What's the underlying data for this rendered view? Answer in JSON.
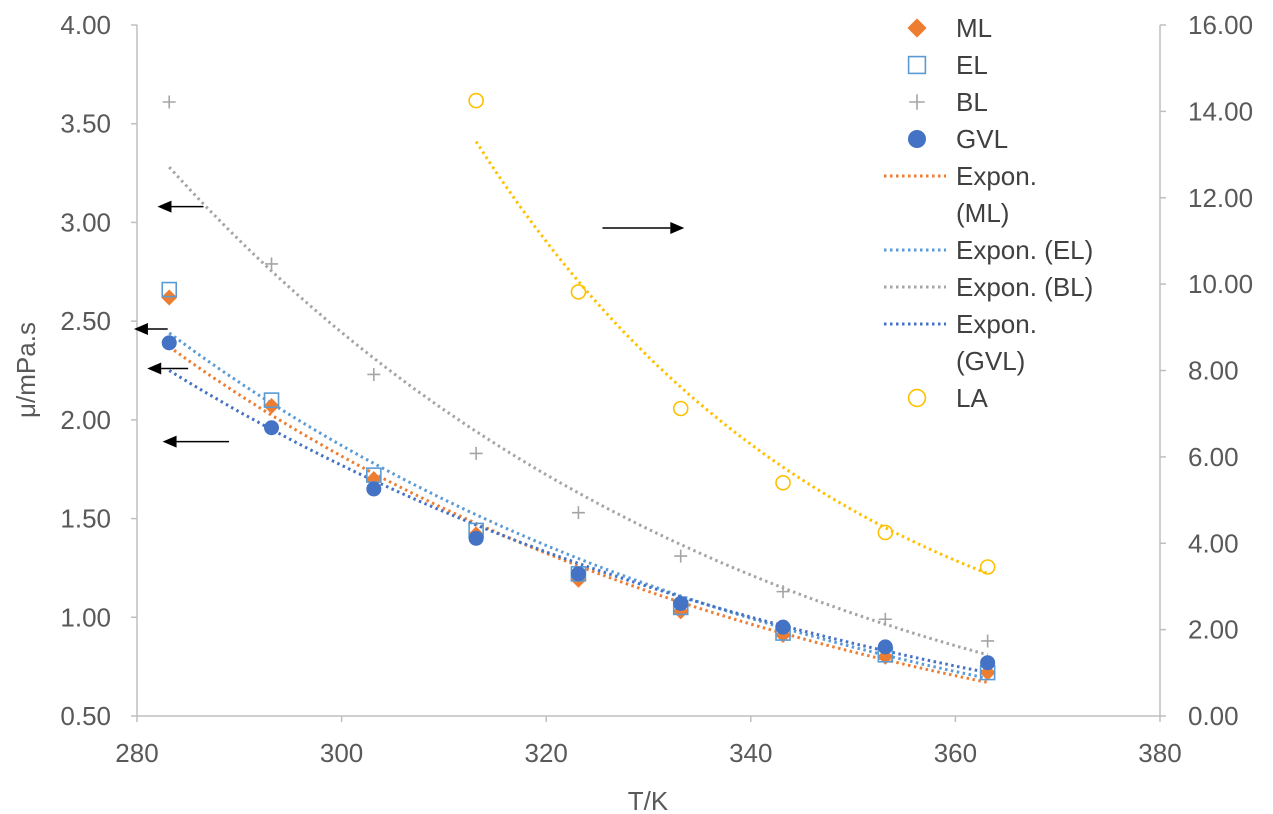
{
  "chart_data": {
    "type": "scatter",
    "xlabel": "T/K",
    "ylabel": "μ/mPa.s",
    "xlim": [
      280,
      380
    ],
    "ylim": [
      0.5,
      4.0
    ],
    "y2lim": [
      0.0,
      16.0
    ],
    "x_ticks": [
      "280",
      "300",
      "320",
      "340",
      "360",
      "380"
    ],
    "y_ticks": [
      "0.50",
      "1.00",
      "1.50",
      "2.00",
      "2.50",
      "3.00",
      "3.50",
      "4.00"
    ],
    "y2_ticks": [
      "0.00",
      "2.00",
      "4.00",
      "6.00",
      "8.00",
      "10.00",
      "12.00",
      "14.00",
      "16.00"
    ],
    "legend_position": "top-right",
    "series": [
      {
        "name": "ML",
        "axis": "left",
        "marker": "diamond",
        "color": "#ED7D31",
        "x": [
          283.15,
          293.15,
          303.15,
          313.15,
          323.15,
          333.15,
          343.15,
          353.15,
          363.15
        ],
        "y": [
          2.62,
          2.07,
          1.7,
          1.42,
          1.19,
          1.03,
          0.91,
          0.8,
          0.72
        ]
      },
      {
        "name": "EL",
        "axis": "left",
        "marker": "square-open",
        "color": "#5B9BD5",
        "x": [
          283.15,
          293.15,
          303.15,
          313.15,
          323.15,
          333.15,
          343.15,
          353.15,
          363.15
        ],
        "y": [
          2.66,
          2.1,
          1.72,
          1.44,
          1.22,
          1.05,
          0.92,
          0.81,
          0.72
        ]
      },
      {
        "name": "BL",
        "axis": "left",
        "marker": "plus",
        "color": "#A5A5A5",
        "x": [
          283.15,
          293.15,
          303.15,
          313.15,
          323.15,
          333.15,
          343.15,
          353.15,
          363.15
        ],
        "y": [
          3.61,
          2.79,
          2.23,
          1.83,
          1.53,
          1.31,
          1.13,
          0.99,
          0.88
        ]
      },
      {
        "name": "GVL",
        "axis": "left",
        "marker": "circle-filled",
        "color": "#4472C4",
        "x": [
          283.15,
          293.15,
          303.15,
          313.15,
          323.15,
          333.15,
          343.15,
          353.15,
          363.15
        ],
        "y": [
          2.39,
          1.96,
          1.65,
          1.4,
          1.22,
          1.07,
          0.95,
          0.85,
          0.77
        ]
      },
      {
        "name": "LA",
        "axis": "right",
        "marker": "circle-open",
        "color": "#FFC000",
        "x": [
          313.15,
          323.15,
          333.15,
          343.15,
          353.15,
          363.15
        ],
        "y": [
          14.25,
          9.82,
          7.12,
          5.4,
          4.25,
          3.45
        ]
      }
    ],
    "trendlines": [
      {
        "name": "Expon. (ML)",
        "type": "exponential",
        "axis": "left",
        "color": "#ED7D31",
        "x_range": [
          283.15,
          363.15
        ],
        "y_start": 2.37,
        "y_end": 0.67
      },
      {
        "name": "Expon. (EL)",
        "type": "exponential",
        "axis": "left",
        "color": "#5B9BD5",
        "x_range": [
          283.15,
          363.15
        ],
        "y_start": 2.44,
        "y_end": 0.69
      },
      {
        "name": "Expon. (BL)",
        "type": "exponential",
        "axis": "left",
        "color": "#A5A5A5",
        "x_range": [
          283.15,
          363.15
        ],
        "y_start": 3.28,
        "y_end": 0.81
      },
      {
        "name": "Expon. (GVL)",
        "type": "exponential",
        "axis": "left",
        "color": "#4472C4",
        "x_range": [
          283.15,
          363.15
        ],
        "y_start": 2.25,
        "y_end": 0.72
      },
      {
        "name": "Expon. (LA)",
        "type": "exponential",
        "axis": "right",
        "color": "#FFC000",
        "x_range": [
          313.15,
          363.15
        ],
        "y_start": 13.3,
        "y_end": 3.3
      }
    ],
    "annotations": [
      {
        "type": "arrow",
        "direction": "left",
        "target_axis": "left",
        "series": "BL",
        "y": 3.08,
        "x_from": 286.5,
        "x_to": 282.0
      },
      {
        "type": "arrow",
        "direction": "left",
        "target_axis": "left",
        "series": "EL",
        "y": 2.46,
        "x_from": 283.0,
        "x_to": 279.7
      },
      {
        "type": "arrow",
        "direction": "left",
        "target_axis": "left",
        "series": "ML",
        "y": 2.26,
        "x_from": 285.0,
        "x_to": 281.0
      },
      {
        "type": "arrow",
        "direction": "left",
        "target_axis": "left",
        "series": "GVL",
        "y": 1.89,
        "x_from": 289.0,
        "x_to": 282.5
      },
      {
        "type": "arrow",
        "direction": "right",
        "target_axis": "right",
        "series": "LA",
        "y": 11.3,
        "x_from": 325.5,
        "x_to": 333.5
      }
    ],
    "legend": [
      {
        "label": "ML",
        "kind": "marker",
        "ref": "ML"
      },
      {
        "label": "EL",
        "kind": "marker",
        "ref": "EL"
      },
      {
        "label": "BL",
        "kind": "marker",
        "ref": "BL"
      },
      {
        "label": "GVL",
        "kind": "marker",
        "ref": "GVL"
      },
      {
        "label": "Expon.",
        "kind": "line",
        "ref": "Expon. (ML)"
      },
      {
        "label": "(ML)",
        "kind": "text",
        "ref": "Expon. (ML)"
      },
      {
        "label": "Expon. (EL)",
        "kind": "line",
        "ref": "Expon. (EL)"
      },
      {
        "label": "Expon. (BL)",
        "kind": "line",
        "ref": "Expon. (BL)"
      },
      {
        "label": "Expon.",
        "kind": "line",
        "ref": "Expon. (GVL)"
      },
      {
        "label": "(GVL)",
        "kind": "text",
        "ref": "Expon. (GVL)"
      },
      {
        "label": "LA",
        "kind": "marker",
        "ref": "LA"
      }
    ]
  }
}
